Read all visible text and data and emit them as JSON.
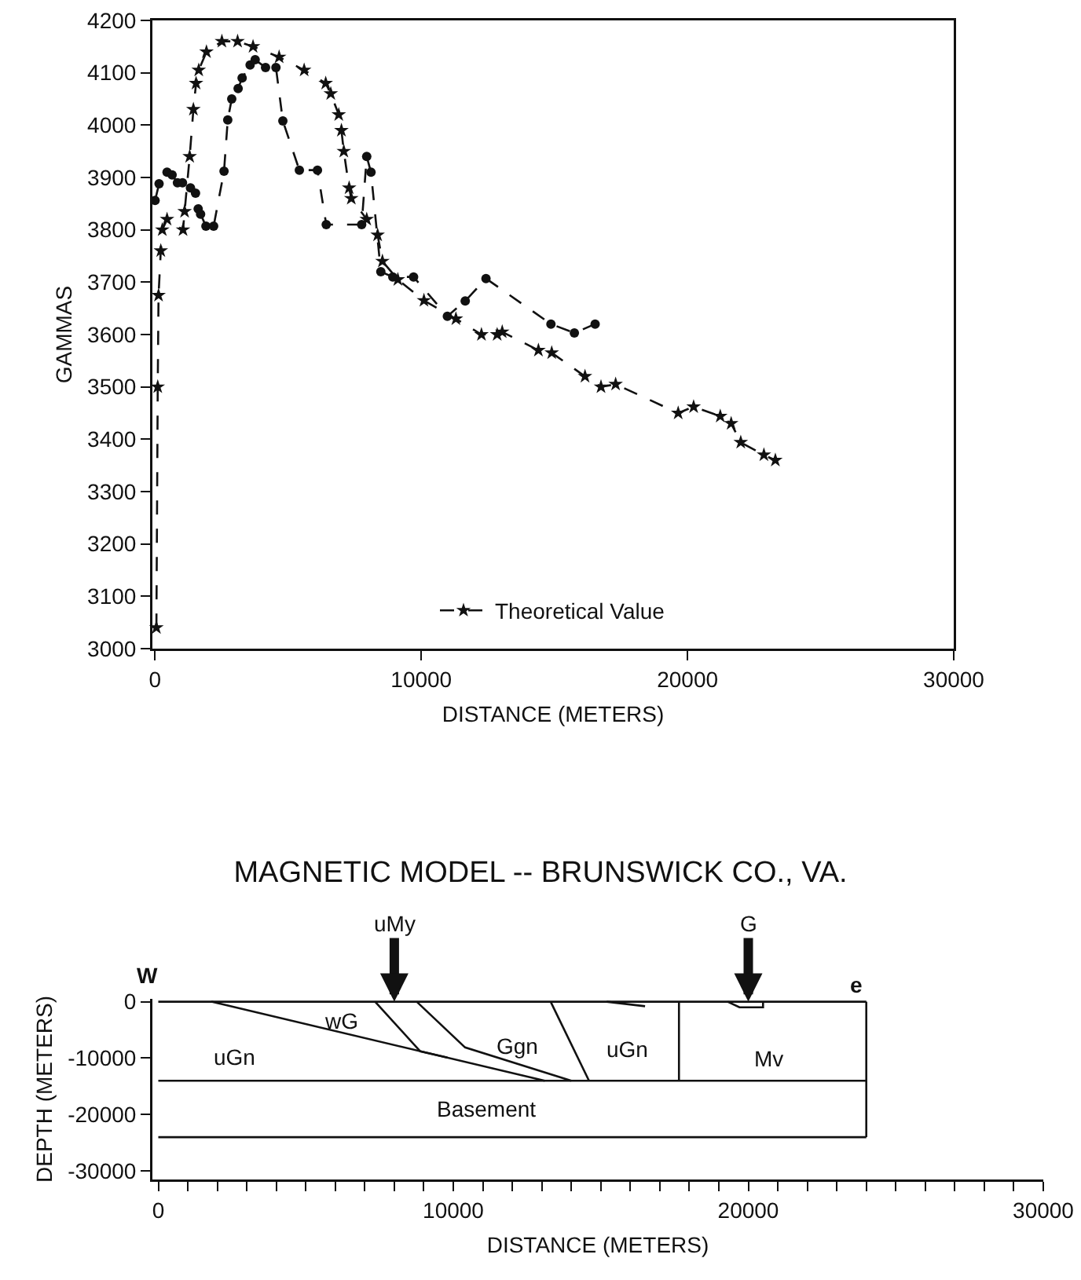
{
  "chart_data": [
    {
      "type": "line",
      "xlabel": "DISTANCE (METERS)",
      "ylabel": "GAMMAS",
      "xlim": [
        -100,
        30000
      ],
      "ylim": [
        3000,
        4200
      ],
      "xticks": [
        0,
        10000,
        20000,
        30000
      ],
      "yticks": [
        3000,
        3100,
        3200,
        3300,
        3400,
        3500,
        3600,
        3700,
        3800,
        3900,
        4000,
        4100,
        4200
      ],
      "grid": false,
      "legend": "bottom",
      "line_style": "dashed",
      "series": [
        {
          "color": "#111111",
          "marker": "circle",
          "x": [
            0,
            150,
            450,
            640,
            840,
            1030,
            1330,
            1520,
            1620,
            1710,
            1910,
            2200,
            2590,
            2730,
            2880,
            3120,
            3270,
            3570,
            3760,
            4150,
            4540,
            4800,
            5420,
            6100,
            6430,
            7760,
            7950,
            8110,
            8480,
            8930,
            9710,
            10980,
            11650,
            12430,
            14870,
            15750,
            16530
          ],
          "values": [
            3856,
            3888,
            3910,
            3905,
            3890,
            3890,
            3880,
            3870,
            3840,
            3830,
            3807,
            3807,
            3912,
            4010,
            4050,
            4070,
            4090,
            4115,
            4125,
            4110,
            4110,
            4008,
            3914,
            3914,
            3810,
            3810,
            3940,
            3910,
            3720,
            3710,
            3710,
            3635,
            3664,
            3707,
            3620,
            3603,
            3620
          ]
        },
        {
          "name": "Theoretical Value",
          "color": "#111111",
          "marker": "star",
          "x": [
            50,
            100,
            130,
            215,
            270,
            450,
            1050,
            1110,
            1300,
            1440,
            1540,
            1640,
            1930,
            2510,
            3100,
            3680,
            4660,
            5600,
            6410,
            6600,
            6900,
            7000,
            7090,
            7290,
            7370,
            7950,
            8360,
            8540,
            9120,
            10100,
            11300,
            12260,
            12850,
            13040,
            14400,
            14900,
            16150,
            16750,
            17300,
            19650,
            20230,
            21230,
            21640,
            22000,
            22870,
            23300
          ],
          "values": [
            3040,
            3500,
            3675,
            3760,
            3800,
            3820,
            3800,
            3835,
            3940,
            4030,
            4080,
            4105,
            4140,
            4160,
            4160,
            4150,
            4130,
            4105,
            4080,
            4060,
            4020,
            3990,
            3950,
            3880,
            3860,
            3820,
            3790,
            3740,
            3705,
            3665,
            3630,
            3600,
            3600,
            3605,
            3570,
            3565,
            3520,
            3500,
            3505,
            3450,
            3462,
            3444,
            3430,
            3394,
            3370,
            3360
          ]
        }
      ]
    },
    {
      "type": "line",
      "title": "MAGNETIC MODEL -- BRUNSWICK CO., VA.",
      "xlabel": "DISTANCE (METERS)",
      "ylabel": "DEPTH (METERS)",
      "xlim": [
        -200,
        30000
      ],
      "ylim": [
        -31500,
        500
      ],
      "xticks": [
        0,
        {
          "value": 1000,
          "label": null
        },
        {
          "value": 2000,
          "label": null
        },
        {
          "value": 3000,
          "label": null
        },
        {
          "value": 4000,
          "label": null
        },
        {
          "value": 5000,
          "label": null
        },
        {
          "value": 6000,
          "label": null
        },
        {
          "value": 7000,
          "label": null
        },
        {
          "value": 8000,
          "label": null
        },
        {
          "value": 9000,
          "label": null
        },
        10000,
        {
          "value": 11000,
          "label": null
        },
        {
          "value": 12000,
          "label": null
        },
        {
          "value": 13000,
          "label": null
        },
        {
          "value": 14000,
          "label": null
        },
        {
          "value": 15000,
          "label": null
        },
        {
          "value": 16000,
          "label": null
        },
        {
          "value": 17000,
          "label": null
        },
        {
          "value": 18000,
          "label": null
        },
        {
          "value": 19000,
          "label": null
        },
        20000,
        {
          "value": 21000,
          "label": null
        },
        {
          "value": 22000,
          "label": null
        },
        {
          "value": 23000,
          "label": null
        },
        {
          "value": 24000,
          "label": null
        },
        {
          "value": 25000,
          "label": null
        },
        {
          "value": 26000,
          "label": null
        },
        {
          "value": 27000,
          "label": null
        },
        {
          "value": 28000,
          "label": null
        },
        {
          "value": 29000,
          "label": null
        },
        30000
      ],
      "yticks": [
        0,
        -10000,
        -20000,
        -30000
      ],
      "grid": false,
      "marker": "none",
      "line_style": "solid",
      "series": [
        {
          "color": "#111111",
          "x": [
            0,
            24000
          ],
          "values": [
            0,
            0
          ]
        },
        {
          "color": "#111111",
          "x": [
            0,
            24000
          ],
          "values": [
            -24000,
            -24000
          ]
        },
        {
          "color": "#111111",
          "x": [
            24000,
            24000
          ],
          "values": [
            0,
            -24000
          ]
        },
        {
          "color": "#111111",
          "x": [
            0,
            24000
          ],
          "values": [
            -14000,
            -14000
          ]
        },
        {
          "color": "#111111",
          "x": [
            1800,
            13100
          ],
          "values": [
            0,
            -14000
          ]
        },
        {
          "color": "#111111",
          "x": [
            7350,
            8880,
            9800
          ],
          "values": [
            0,
            -8800,
            -9900
          ]
        },
        {
          "color": "#111111",
          "x": [
            8760,
            10400,
            14000
          ],
          "values": [
            0,
            -8100,
            -14000
          ]
        },
        {
          "color": "#111111",
          "x": [
            13300,
            14600
          ],
          "values": [
            0,
            -14000
          ]
        },
        {
          "color": "#111111",
          "x": [
            17650,
            17650
          ],
          "values": [
            0,
            -14000
          ]
        },
        {
          "color": "#111111",
          "x": [
            15200,
            16500
          ],
          "values": [
            0,
            -800
          ]
        },
        {
          "color": "#111111",
          "x": [
            19300,
            19700,
            20500,
            20500
          ],
          "values": [
            0,
            -1000,
            -1000,
            0
          ]
        }
      ],
      "annotations": [
        "W",
        "e",
        {
          "text": "uMy",
          "x": 8000,
          "y": 0
        },
        {
          "text": "G",
          "x": 20000,
          "y": 0
        },
        "uGn",
        "wG",
        "Ggn",
        "uGn",
        "Mv",
        "Basement"
      ]
    }
  ]
}
